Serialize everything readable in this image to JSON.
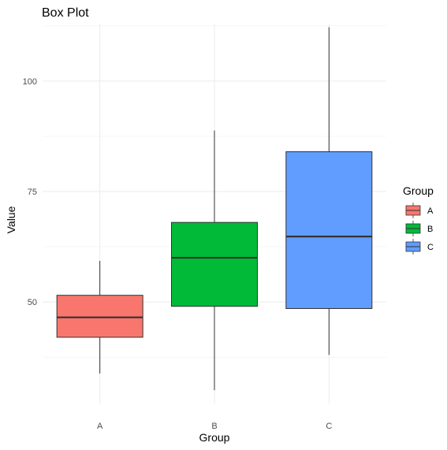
{
  "chart_data": {
    "type": "box",
    "title": "Box Plot",
    "xlabel": "Group",
    "ylabel": "Value",
    "ylim": [
      27,
      113
    ],
    "yticks": [
      50,
      75,
      100
    ],
    "grid": true,
    "legend": {
      "title": "Group",
      "placement": "right"
    },
    "categories": [
      "A",
      "B",
      "C"
    ],
    "series": [
      {
        "name": "A",
        "color": "#F8766D",
        "min": 33.8,
        "q1": 42.0,
        "median": 46.5,
        "q3": 51.5,
        "max": 59.3
      },
      {
        "name": "B",
        "color": "#00BA38",
        "min": 30.0,
        "q1": 49.0,
        "median": 60.0,
        "q3": 68.0,
        "max": 88.8
      },
      {
        "name": "C",
        "color": "#619CFF",
        "min": 38.0,
        "q1": 48.5,
        "median": 64.8,
        "q3": 84.0,
        "max": 112.2
      }
    ]
  }
}
